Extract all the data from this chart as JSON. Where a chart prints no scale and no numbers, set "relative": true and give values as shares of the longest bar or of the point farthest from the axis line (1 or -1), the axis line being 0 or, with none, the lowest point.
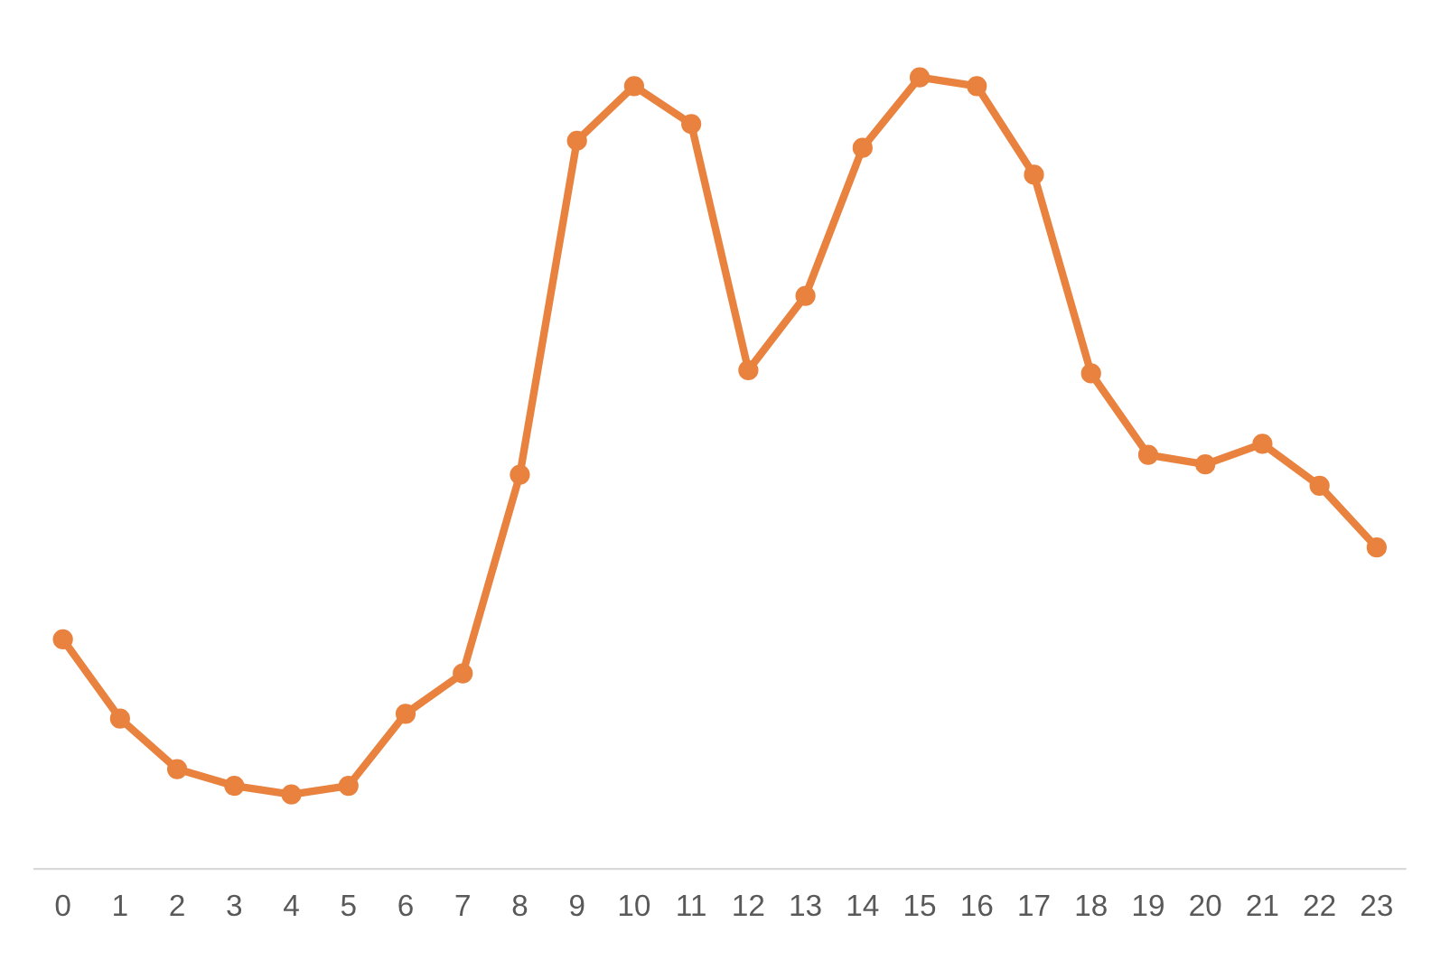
{
  "chart_data": {
    "type": "line",
    "relative": true,
    "marker": "circle",
    "line_style": "solid",
    "grid": false,
    "legend": false,
    "categories": [
      "0",
      "1",
      "2",
      "3",
      "4",
      "5",
      "6",
      "7",
      "8",
      "9",
      "10",
      "11",
      "12",
      "13",
      "14",
      "15",
      "16",
      "17",
      "18",
      "19",
      "20",
      "21",
      "22",
      "23"
    ],
    "series": [
      {
        "color": "#e8823e",
        "values": [
          0.29,
          0.19,
          0.126,
          0.105,
          0.094,
          0.105,
          0.196,
          0.247,
          0.498,
          0.92,
          0.989,
          0.941,
          0.63,
          0.724,
          0.911,
          1,
          0.989,
          0.877,
          0.626,
          0.523,
          0.511,
          0.537,
          0.484,
          0.406
        ]
      }
    ]
  }
}
